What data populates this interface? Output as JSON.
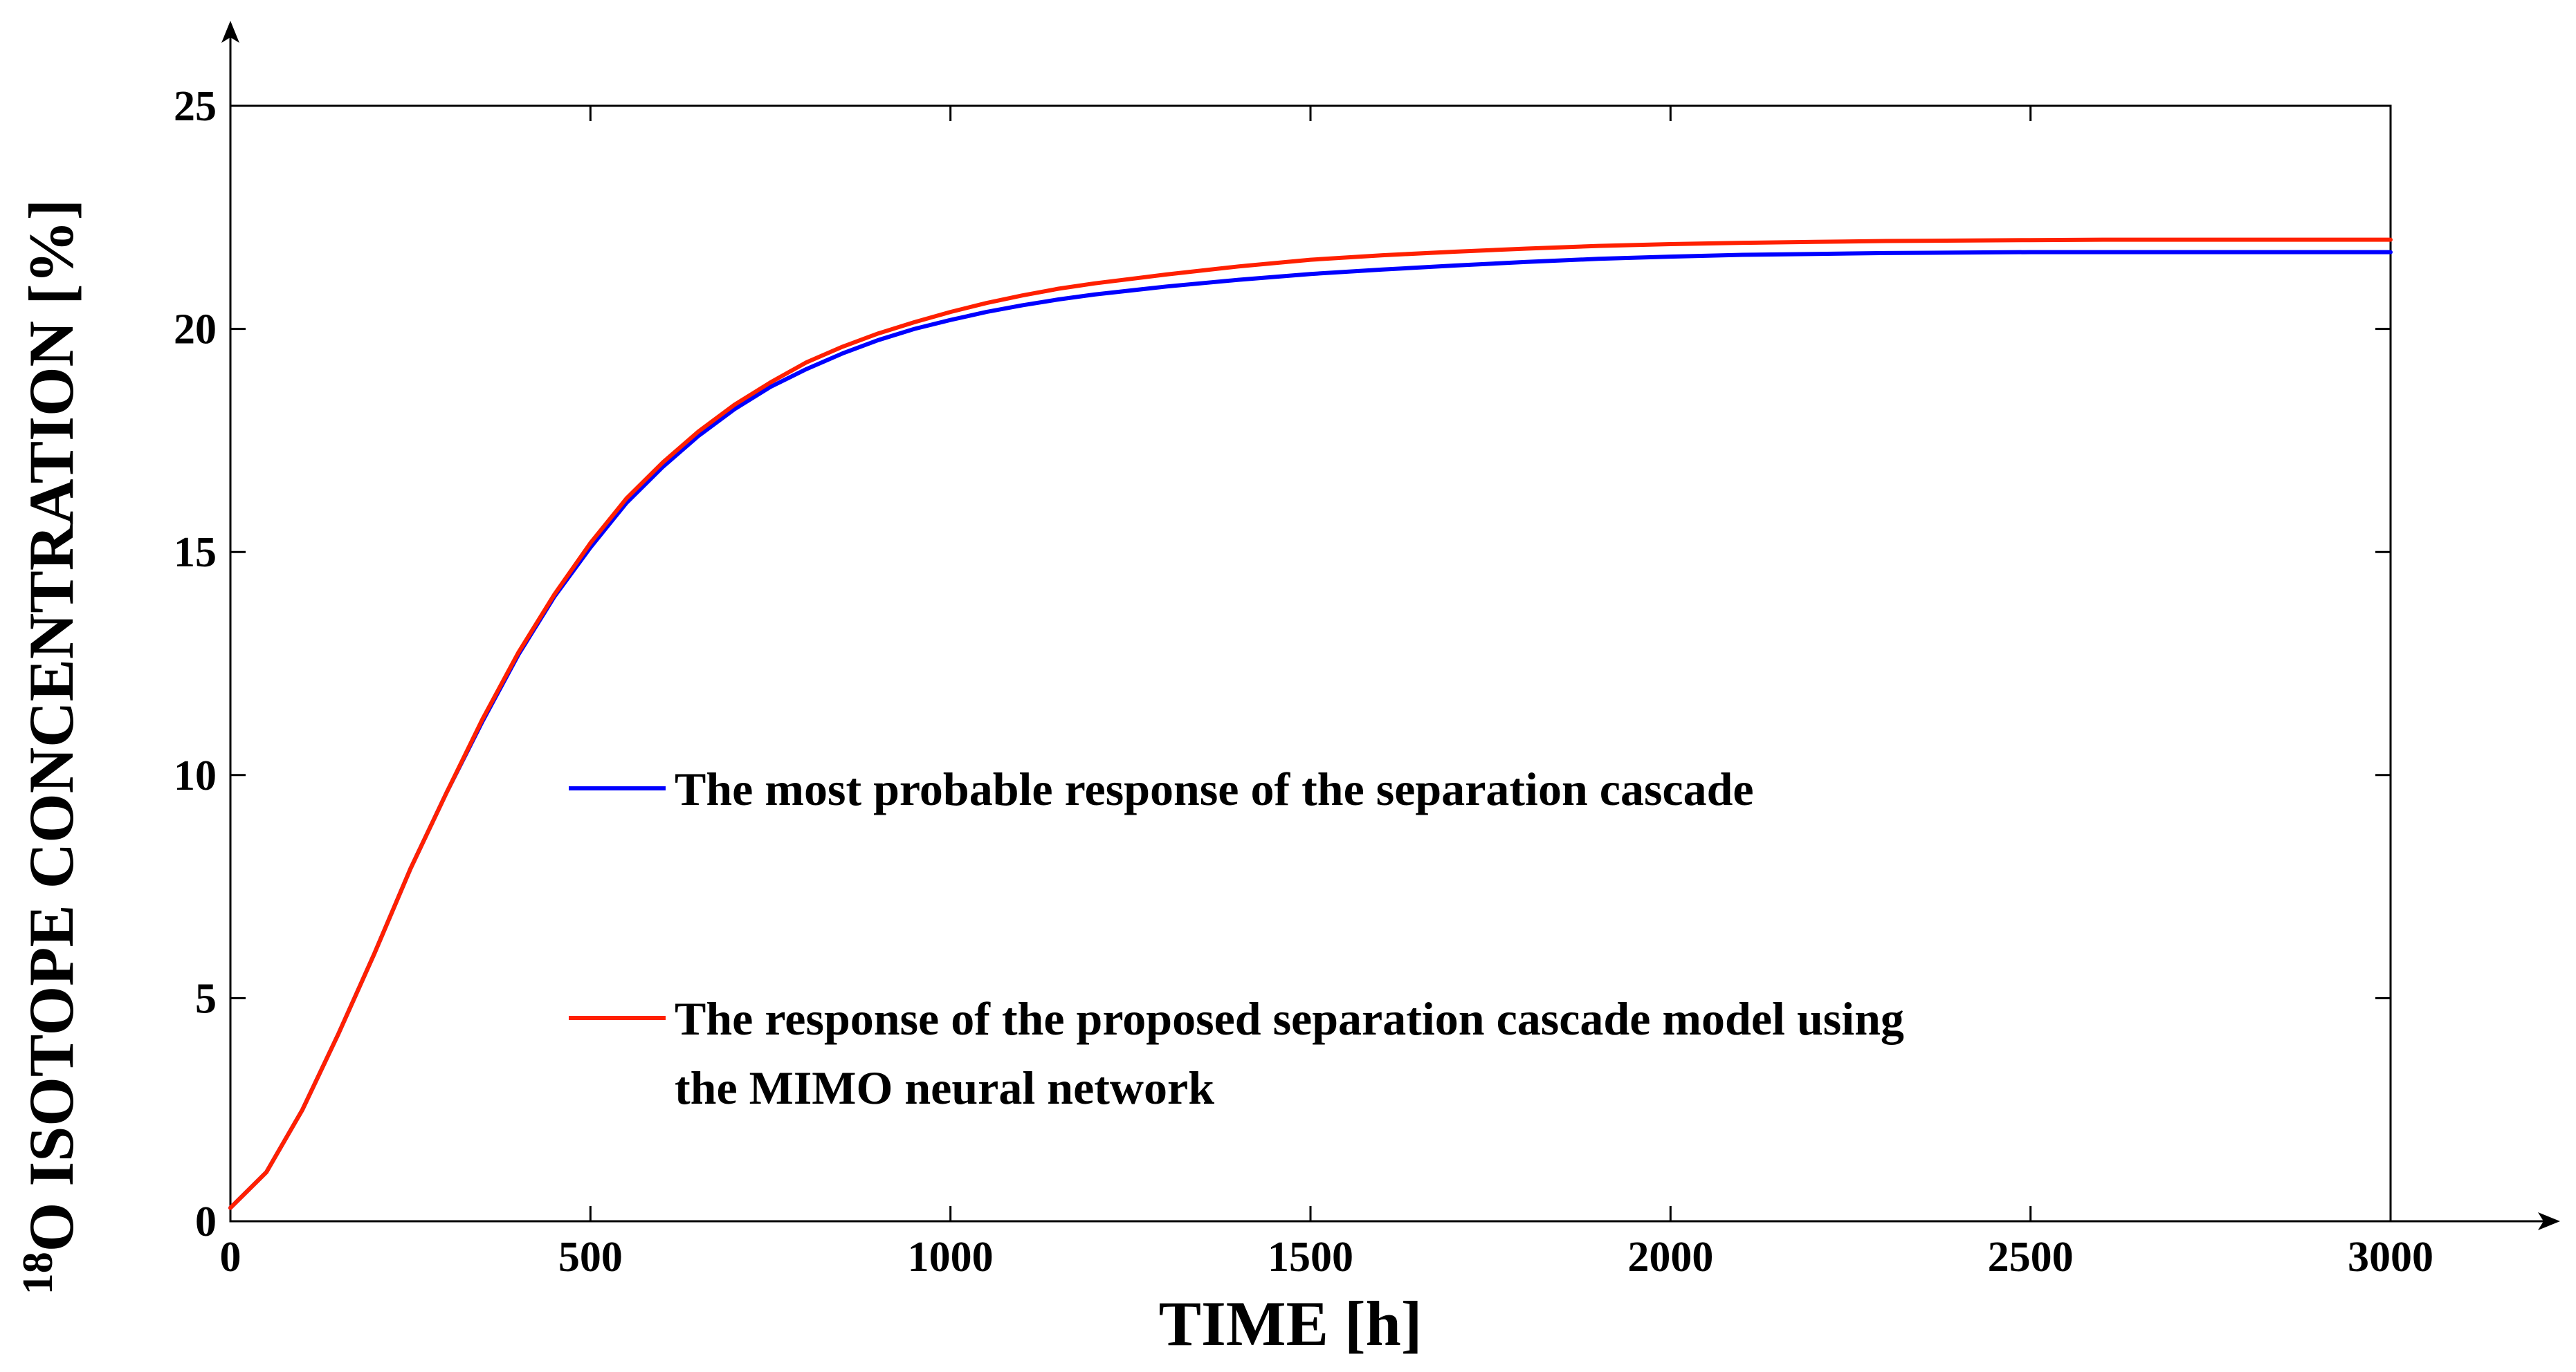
{
  "chart_data": {
    "type": "line",
    "title": "",
    "xlabel": "TIME [h]",
    "ylabel_superscript": "18",
    "ylabel": "O ISOTOPE CONCENTRATION [%]",
    "xlim": [
      0,
      3000
    ],
    "ylim": [
      0,
      25
    ],
    "xticks": [
      0,
      500,
      1000,
      1500,
      2000,
      2500,
      3000
    ],
    "yticks": [
      0,
      5,
      10,
      15,
      20,
      25
    ],
    "grid": false,
    "legend_position": "inside-center",
    "series": [
      {
        "name": "The most probable response of the separation cascade",
        "name_lines": [
          "The most probable response of the separation cascade"
        ],
        "color": "#0000ff",
        "x": [
          0,
          50,
          100,
          150,
          200,
          250,
          300,
          350,
          400,
          450,
          500,
          550,
          600,
          650,
          700,
          750,
          800,
          850,
          900,
          950,
          1000,
          1050,
          1100,
          1150,
          1200,
          1300,
          1400,
          1500,
          1600,
          1700,
          1800,
          1900,
          2000,
          2100,
          2200,
          2300,
          2400,
          2500,
          2600,
          2700,
          2800,
          2900,
          3000
        ],
        "y": [
          0.3,
          1.1,
          2.5,
          4.2,
          6.0,
          7.9,
          9.6,
          11.2,
          12.7,
          14.0,
          15.1,
          16.1,
          16.9,
          17.6,
          18.2,
          18.7,
          19.1,
          19.45,
          19.75,
          20.0,
          20.2,
          20.38,
          20.53,
          20.66,
          20.77,
          20.95,
          21.1,
          21.23,
          21.33,
          21.42,
          21.5,
          21.57,
          21.62,
          21.66,
          21.68,
          21.7,
          21.71,
          21.72,
          21.72,
          21.72,
          21.72,
          21.72,
          21.72
        ]
      },
      {
        "name": "The response of the proposed separation cascade model using the MIMO neural network",
        "name_lines": [
          "The response of the proposed separation cascade model using",
          "the MIMO neural network"
        ],
        "color": "#ff2000",
        "x": [
          0,
          50,
          100,
          150,
          200,
          250,
          300,
          350,
          400,
          450,
          500,
          550,
          600,
          650,
          700,
          750,
          800,
          850,
          900,
          950,
          1000,
          1050,
          1100,
          1150,
          1200,
          1300,
          1400,
          1500,
          1600,
          1700,
          1800,
          1900,
          2000,
          2100,
          2200,
          2300,
          2400,
          2500,
          2600,
          2700,
          2800,
          2900,
          3000
        ],
        "y": [
          0.3,
          1.1,
          2.5,
          4.2,
          6.0,
          7.9,
          9.6,
          11.25,
          12.75,
          14.05,
          15.2,
          16.2,
          17.0,
          17.7,
          18.3,
          18.8,
          19.25,
          19.6,
          19.9,
          20.15,
          20.38,
          20.58,
          20.75,
          20.9,
          21.02,
          21.22,
          21.4,
          21.55,
          21.65,
          21.73,
          21.8,
          21.86,
          21.9,
          21.93,
          21.95,
          21.97,
          21.98,
          21.99,
          22.0,
          22.0,
          22.0,
          22.0,
          22.0
        ]
      }
    ]
  }
}
